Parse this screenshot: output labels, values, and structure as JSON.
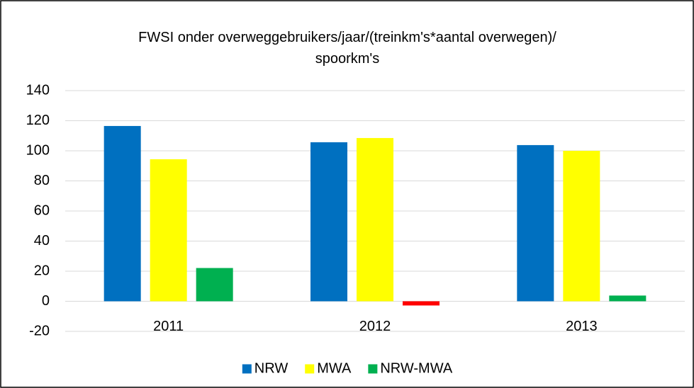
{
  "chart_data": {
    "type": "bar",
    "title": "FWSI onder overweggebruikers/jaar/(treinkm's*aantal overwegen)/ spoorkm's",
    "categories": [
      "2011",
      "2012",
      "2013"
    ],
    "series": [
      {
        "name": "NRW",
        "color": "#0070c0",
        "values": [
          116.5,
          105.7,
          103.8
        ]
      },
      {
        "name": "MWA",
        "color": "#ffff00",
        "values": [
          94.4,
          108.5,
          100
        ]
      },
      {
        "name": "NRW-MWA",
        "color": "#00b050",
        "negative_color": "#ff0000",
        "values": [
          22.1,
          -2.8,
          3.8
        ]
      }
    ],
    "ylim": [
      -20,
      140
    ],
    "yticks": [
      -20,
      0,
      20,
      40,
      60,
      80,
      100,
      120,
      140
    ],
    "grid": true,
    "legend": "bottom"
  }
}
